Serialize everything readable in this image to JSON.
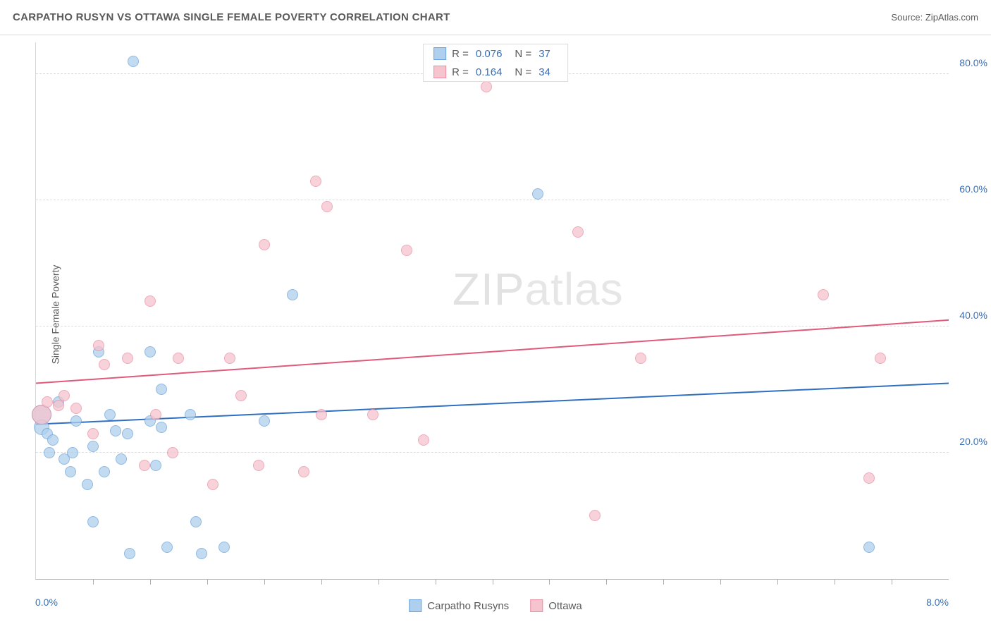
{
  "title": "CARPATHO RUSYN VS OTTAWA SINGLE FEMALE POVERTY CORRELATION CHART",
  "source_label": "Source:",
  "source_name": "ZipAtlas.com",
  "y_axis_label": "Single Female Poverty",
  "watermark_a": "ZIP",
  "watermark_b": "atlas",
  "chart": {
    "type": "scatter",
    "xlim": [
      0.0,
      8.0
    ],
    "ylim": [
      0.0,
      85.0
    ],
    "x_tick_labels": {
      "min": "0.0%",
      "max": "8.0%"
    },
    "x_ticks": [
      0.5,
      1.0,
      1.5,
      2.0,
      2.5,
      3.0,
      3.5,
      4.0,
      4.5,
      5.0,
      5.5,
      6.0,
      6.5,
      7.0,
      7.5
    ],
    "y_gridlines": [
      20.0,
      40.0,
      60.0,
      80.0
    ],
    "y_tick_labels": [
      "20.0%",
      "40.0%",
      "60.0%",
      "80.0%"
    ],
    "background_color": "#ffffff",
    "grid_color": "#dcdcdc",
    "series": [
      {
        "name": "Carpatho Rusyns",
        "fill": "#aecfed",
        "stroke": "#6ba3da",
        "r_value": "0.076",
        "n_value": "37",
        "trend": {
          "y_at_xmin": 24.5,
          "y_at_xmax": 31.0,
          "color": "#2f6fc0",
          "width": 2
        },
        "points": [
          {
            "x": 0.05,
            "y": 26.0,
            "r": 14
          },
          {
            "x": 0.05,
            "y": 24.0,
            "r": 11
          },
          {
            "x": 0.1,
            "y": 23.0,
            "r": 8
          },
          {
            "x": 0.12,
            "y": 20.0,
            "r": 8
          },
          {
            "x": 0.15,
            "y": 22.0,
            "r": 8
          },
          {
            "x": 0.2,
            "y": 28.0,
            "r": 8
          },
          {
            "x": 0.25,
            "y": 19.0,
            "r": 8
          },
          {
            "x": 0.3,
            "y": 17.0,
            "r": 8
          },
          {
            "x": 0.32,
            "y": 20.0,
            "r": 8
          },
          {
            "x": 0.35,
            "y": 25.0,
            "r": 8
          },
          {
            "x": 0.45,
            "y": 15.0,
            "r": 8
          },
          {
            "x": 0.5,
            "y": 21.0,
            "r": 8
          },
          {
            "x": 0.5,
            "y": 9.0,
            "r": 8
          },
          {
            "x": 0.55,
            "y": 36.0,
            "r": 8
          },
          {
            "x": 0.6,
            "y": 17.0,
            "r": 8
          },
          {
            "x": 0.65,
            "y": 26.0,
            "r": 8
          },
          {
            "x": 0.7,
            "y": 23.5,
            "r": 8
          },
          {
            "x": 0.75,
            "y": 19.0,
            "r": 8
          },
          {
            "x": 0.8,
            "y": 23.0,
            "r": 8
          },
          {
            "x": 0.82,
            "y": 4.0,
            "r": 8
          },
          {
            "x": 0.85,
            "y": 82.0,
            "r": 8
          },
          {
            "x": 1.0,
            "y": 36.0,
            "r": 8
          },
          {
            "x": 1.0,
            "y": 25.0,
            "r": 8
          },
          {
            "x": 1.05,
            "y": 18.0,
            "r": 8
          },
          {
            "x": 1.1,
            "y": 30.0,
            "r": 8
          },
          {
            "x": 1.1,
            "y": 24.0,
            "r": 8
          },
          {
            "x": 1.15,
            "y": 5.0,
            "r": 8
          },
          {
            "x": 1.35,
            "y": 26.0,
            "r": 8
          },
          {
            "x": 1.4,
            "y": 9.0,
            "r": 8
          },
          {
            "x": 1.45,
            "y": 4.0,
            "r": 8
          },
          {
            "x": 1.65,
            "y": 5.0,
            "r": 8
          },
          {
            "x": 2.0,
            "y": 25.0,
            "r": 8
          },
          {
            "x": 2.25,
            "y": 45.0,
            "r": 8
          },
          {
            "x": 4.4,
            "y": 61.0,
            "r": 8
          },
          {
            "x": 7.3,
            "y": 5.0,
            "r": 8
          }
        ]
      },
      {
        "name": "Ottawa",
        "fill": "#f6c4ce",
        "stroke": "#e98ea1",
        "r_value": "0.164",
        "n_value": "34",
        "trend": {
          "y_at_xmin": 31.0,
          "y_at_xmax": 41.0,
          "color": "#e05a7a",
          "width": 2
        },
        "points": [
          {
            "x": 0.05,
            "y": 26.0,
            "r": 14
          },
          {
            "x": 0.1,
            "y": 28.0,
            "r": 8
          },
          {
            "x": 0.2,
            "y": 27.5,
            "r": 8
          },
          {
            "x": 0.25,
            "y": 29.0,
            "r": 8
          },
          {
            "x": 0.35,
            "y": 27.0,
            "r": 8
          },
          {
            "x": 0.5,
            "y": 23.0,
            "r": 8
          },
          {
            "x": 0.55,
            "y": 37.0,
            "r": 8
          },
          {
            "x": 0.6,
            "y": 34.0,
            "r": 8
          },
          {
            "x": 0.8,
            "y": 35.0,
            "r": 8
          },
          {
            "x": 0.95,
            "y": 18.0,
            "r": 8
          },
          {
            "x": 1.0,
            "y": 44.0,
            "r": 8
          },
          {
            "x": 1.05,
            "y": 26.0,
            "r": 8
          },
          {
            "x": 1.2,
            "y": 20.0,
            "r": 8
          },
          {
            "x": 1.25,
            "y": 35.0,
            "r": 8
          },
          {
            "x": 1.55,
            "y": 15.0,
            "r": 8
          },
          {
            "x": 1.7,
            "y": 35.0,
            "r": 8
          },
          {
            "x": 1.8,
            "y": 29.0,
            "r": 8
          },
          {
            "x": 1.95,
            "y": 18.0,
            "r": 8
          },
          {
            "x": 2.0,
            "y": 53.0,
            "r": 8
          },
          {
            "x": 2.35,
            "y": 17.0,
            "r": 8
          },
          {
            "x": 2.45,
            "y": 63.0,
            "r": 8
          },
          {
            "x": 2.5,
            "y": 26.0,
            "r": 8
          },
          {
            "x": 2.55,
            "y": 59.0,
            "r": 8
          },
          {
            "x": 2.95,
            "y": 26.0,
            "r": 8
          },
          {
            "x": 3.25,
            "y": 52.0,
            "r": 8
          },
          {
            "x": 3.4,
            "y": 22.0,
            "r": 8
          },
          {
            "x": 3.95,
            "y": 78.0,
            "r": 8
          },
          {
            "x": 4.75,
            "y": 55.0,
            "r": 8
          },
          {
            "x": 4.9,
            "y": 10.0,
            "r": 8
          },
          {
            "x": 5.3,
            "y": 35.0,
            "r": 8
          },
          {
            "x": 6.9,
            "y": 45.0,
            "r": 8
          },
          {
            "x": 7.3,
            "y": 16.0,
            "r": 8
          },
          {
            "x": 7.4,
            "y": 35.0,
            "r": 8
          }
        ]
      }
    ]
  },
  "legend_top_labels": {
    "R": "R =",
    "N": "N ="
  },
  "legend_bottom": [
    "Carpatho Rusyns",
    "Ottawa"
  ]
}
